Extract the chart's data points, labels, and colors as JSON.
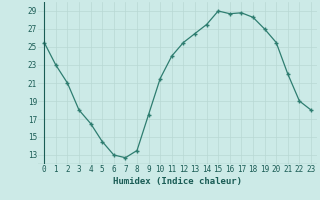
{
  "x": [
    0,
    1,
    2,
    3,
    4,
    5,
    6,
    7,
    8,
    9,
    10,
    11,
    12,
    13,
    14,
    15,
    16,
    17,
    18,
    19,
    20,
    21,
    22,
    23
  ],
  "y": [
    25.5,
    23,
    21,
    18,
    16.5,
    14.5,
    13,
    12.7,
    13.5,
    17.5,
    21.5,
    24,
    25.5,
    26.5,
    27.5,
    29,
    28.7,
    28.8,
    28.3,
    27,
    25.5,
    22,
    19,
    18
  ],
  "line_color": "#2e7d70",
  "marker": "+",
  "bg_color": "#cceae7",
  "grid_color": "#b8d8d4",
  "xlabel": "Humidex (Indice chaleur)",
  "xlabel_color": "#1a5c55",
  "tick_color": "#1a5c55",
  "ylim": [
    12,
    30
  ],
  "xlim": [
    -0.5,
    23.5
  ],
  "yticks": [
    13,
    15,
    17,
    19,
    21,
    23,
    25,
    27,
    29
  ],
  "xticks": [
    0,
    1,
    2,
    3,
    4,
    5,
    6,
    7,
    8,
    9,
    10,
    11,
    12,
    13,
    14,
    15,
    16,
    17,
    18,
    19,
    20,
    21,
    22,
    23
  ]
}
